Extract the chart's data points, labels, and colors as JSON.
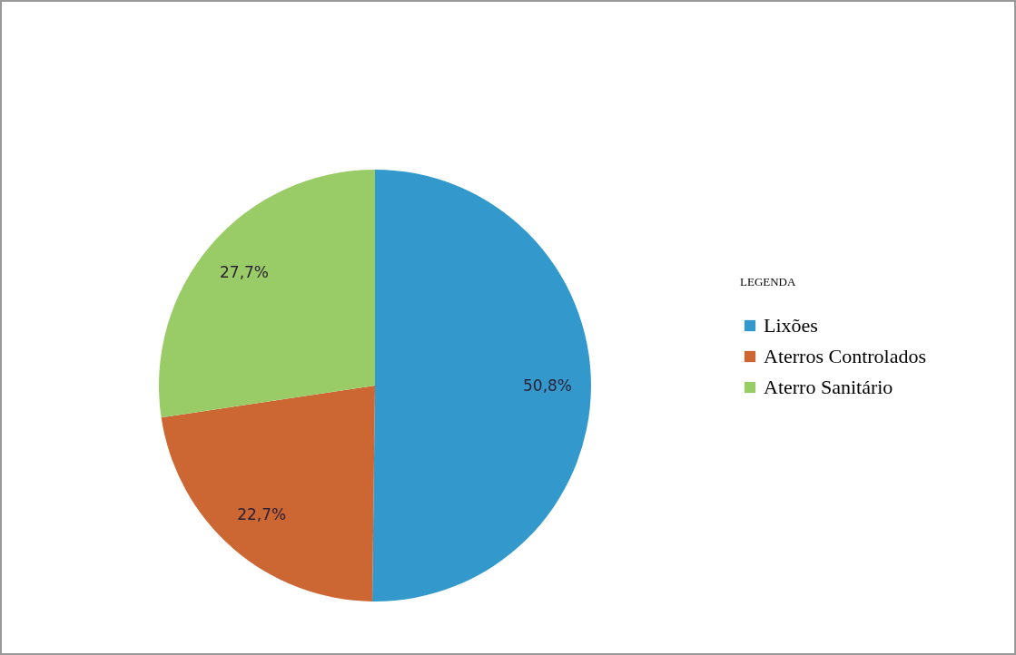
{
  "chart_data": {
    "type": "pie",
    "legend_title": "LEGENDA",
    "legend": "right",
    "categories": [
      "Lixões",
      "Aterros Controlados",
      "Aterro Sanitário"
    ],
    "values": [
      50.8,
      22.7,
      27.7
    ],
    "colors": [
      "#3399cc",
      "#cc6633",
      "#99cc66"
    ],
    "value_labels": [
      "50,8%",
      "22,7%",
      "27,7%"
    ]
  }
}
